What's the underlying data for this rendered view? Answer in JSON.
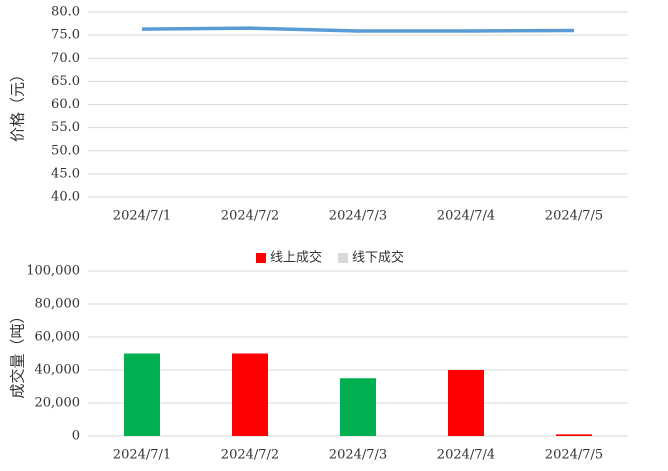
{
  "chart_data": [
    {
      "type": "line",
      "y_label": "价格（元）",
      "categories": [
        "2024/7/1",
        "2024/7/2",
        "2024/7/3",
        "2024/7/4",
        "2024/7/5"
      ],
      "series": [
        {
          "name": "价格",
          "color": "#5b9bd5",
          "values": [
            76.3,
            76.5,
            75.9,
            75.9,
            76.0
          ]
        }
      ],
      "ylim": [
        40,
        80
      ],
      "yticks": [
        {
          "value": 40,
          "label": "40.0"
        },
        {
          "value": 45,
          "label": "45.0"
        },
        {
          "value": 50,
          "label": "50.0"
        },
        {
          "value": 55,
          "label": "55.0"
        },
        {
          "value": 60,
          "label": "60.0"
        },
        {
          "value": 65,
          "label": "65.0"
        },
        {
          "value": 70,
          "label": "70.0"
        },
        {
          "value": 75,
          "label": "75.0"
        },
        {
          "value": 80,
          "label": "80.0"
        }
      ],
      "grid": true
    },
    {
      "type": "bar",
      "y_label": "成交量（吨）",
      "categories": [
        "2024/7/1",
        "2024/7/2",
        "2024/7/3",
        "2024/7/4",
        "2024/7/5"
      ],
      "series": [
        {
          "name": "线上成交",
          "color": "#ff0000",
          "values": [
            50000,
            50000,
            35000,
            40000,
            1000
          ],
          "point_colors": [
            "#00b050",
            "#ff0000",
            "#00b050",
            "#ff0000",
            "#ff0000"
          ]
        },
        {
          "name": "线下成交",
          "color": "#d9d9d9",
          "values": [
            null,
            null,
            null,
            null,
            null
          ]
        }
      ],
      "ylim": [
        0,
        100000
      ],
      "yticks": [
        0,
        {
          "value": 20000,
          "label": "20,000"
        },
        {
          "value": 40000,
          "label": "40,000"
        },
        {
          "value": 60000,
          "label": "60,000"
        },
        {
          "value": 80000,
          "label": "80,000"
        },
        {
          "value": 100000,
          "label": "100,000"
        }
      ],
      "grid": true,
      "legend": "top"
    }
  ]
}
